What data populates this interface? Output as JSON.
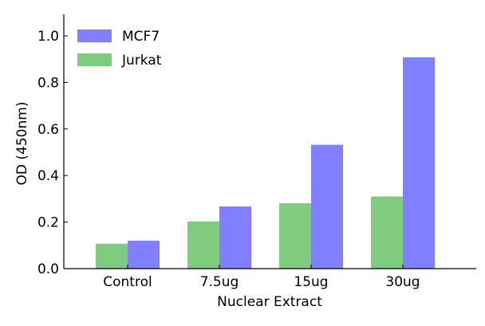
{
  "chart_data": {
    "type": "bar",
    "title": "",
    "xlabel": "Nuclear Extract",
    "ylabel": "OD (450nm)",
    "categories": [
      "Control",
      "7.5ug",
      "15ug",
      "30ug"
    ],
    "series": [
      {
        "name": "Jurkat",
        "color": "#7fcc7f",
        "values": [
          0.107,
          0.203,
          0.281,
          0.31
        ]
      },
      {
        "name": "MCF7",
        "color": "#7f7fff",
        "values": [
          0.12,
          0.267,
          0.532,
          0.908
        ]
      }
    ],
    "legend_order": [
      "MCF7",
      "Jurkat"
    ],
    "ylim": [
      0,
      1.1
    ],
    "yticks": [
      "0.0",
      "0.2",
      "0.4",
      "0.6",
      "0.8",
      "1.0"
    ],
    "grid": false,
    "legend_position": "top-left"
  }
}
